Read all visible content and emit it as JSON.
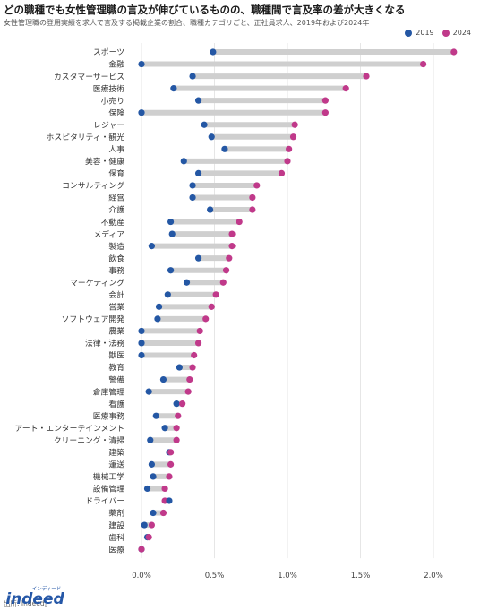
{
  "header": {
    "title": "どの職種でも女性管理職の言及が伸びているものの、職種間で言及率の差が大きくなる",
    "subtitle": "女性管理職の登用実績を求人で言及する掲載企業の割合、職種カテゴリごと、正社員求人、2019年および2024年"
  },
  "legend": {
    "items": [
      {
        "label": "2019",
        "color": "#2457a4"
      },
      {
        "label": "2024",
        "color": "#c0398a"
      }
    ]
  },
  "footer": {
    "source": "出所: Indeed。",
    "logo_text": "indeed",
    "logo_sub": "インディード"
  },
  "chart_data": {
    "type": "dumbbell",
    "x_ticks": [
      "0.0%",
      "0.5%",
      "1.0%",
      "1.5%",
      "2.0%"
    ],
    "xlim": [
      0,
      2.0
    ],
    "x_unit": "%",
    "grid": true,
    "legend_position": "top-right",
    "series": [
      {
        "name": "2019",
        "color": "#2457a4"
      },
      {
        "name": "2024",
        "color": "#c0398a"
      }
    ],
    "categories": [
      {
        "label": "スポーツ",
        "v2019": 0.49,
        "v2024": 2.14
      },
      {
        "label": "金融",
        "v2019": 0.0,
        "v2024": 1.93
      },
      {
        "label": "カスタマーサービス",
        "v2019": 0.35,
        "v2024": 1.54
      },
      {
        "label": "医療技術",
        "v2019": 0.22,
        "v2024": 1.4
      },
      {
        "label": "小売り",
        "v2019": 0.39,
        "v2024": 1.26
      },
      {
        "label": "保険",
        "v2019": 0.0,
        "v2024": 1.26
      },
      {
        "label": "レジャー",
        "v2019": 0.43,
        "v2024": 1.05
      },
      {
        "label": "ホスピタリティ・観光",
        "v2019": 0.48,
        "v2024": 1.04
      },
      {
        "label": "人事",
        "v2019": 0.57,
        "v2024": 1.01
      },
      {
        "label": "美容・健康",
        "v2019": 0.29,
        "v2024": 1.0
      },
      {
        "label": "保育",
        "v2019": 0.39,
        "v2024": 0.96
      },
      {
        "label": "コンサルティング",
        "v2019": 0.35,
        "v2024": 0.79
      },
      {
        "label": "経営",
        "v2019": 0.35,
        "v2024": 0.76
      },
      {
        "label": "介護",
        "v2019": 0.47,
        "v2024": 0.76
      },
      {
        "label": "不動産",
        "v2019": 0.2,
        "v2024": 0.67
      },
      {
        "label": "メディア",
        "v2019": 0.21,
        "v2024": 0.62
      },
      {
        "label": "製造",
        "v2019": 0.07,
        "v2024": 0.62
      },
      {
        "label": "飲食",
        "v2019": 0.39,
        "v2024": 0.6
      },
      {
        "label": "事務",
        "v2019": 0.2,
        "v2024": 0.58
      },
      {
        "label": "マーケティング",
        "v2019": 0.31,
        "v2024": 0.56
      },
      {
        "label": "会計",
        "v2019": 0.18,
        "v2024": 0.51
      },
      {
        "label": "営業",
        "v2019": 0.12,
        "v2024": 0.48
      },
      {
        "label": "ソフトウェア開発",
        "v2019": 0.11,
        "v2024": 0.44
      },
      {
        "label": "農業",
        "v2019": 0.0,
        "v2024": 0.4
      },
      {
        "label": "法律・法務",
        "v2019": 0.0,
        "v2024": 0.39
      },
      {
        "label": "獣医",
        "v2019": 0.0,
        "v2024": 0.36
      },
      {
        "label": "教育",
        "v2019": 0.26,
        "v2024": 0.35
      },
      {
        "label": "警備",
        "v2019": 0.15,
        "v2024": 0.33
      },
      {
        "label": "倉庫管理",
        "v2019": 0.05,
        "v2024": 0.32
      },
      {
        "label": "看護",
        "v2019": 0.24,
        "v2024": 0.28
      },
      {
        "label": "医療事務",
        "v2019": 0.1,
        "v2024": 0.25
      },
      {
        "label": "アート・エンターテインメント",
        "v2019": 0.16,
        "v2024": 0.24
      },
      {
        "label": "クリーニング・清掃",
        "v2019": 0.06,
        "v2024": 0.24
      },
      {
        "label": "建築",
        "v2019": 0.19,
        "v2024": 0.2
      },
      {
        "label": "運送",
        "v2019": 0.07,
        "v2024": 0.2
      },
      {
        "label": "機械工学",
        "v2019": 0.08,
        "v2024": 0.19
      },
      {
        "label": "設備管理",
        "v2019": 0.04,
        "v2024": 0.16
      },
      {
        "label": "ドライバー",
        "v2019": 0.19,
        "v2024": 0.16
      },
      {
        "label": "薬剤",
        "v2019": 0.08,
        "v2024": 0.15
      },
      {
        "label": "建設",
        "v2019": 0.02,
        "v2024": 0.07
      },
      {
        "label": "歯科",
        "v2019": 0.04,
        "v2024": 0.05
      },
      {
        "label": "医療",
        "v2019": 0.0,
        "v2024": 0.0
      }
    ]
  }
}
